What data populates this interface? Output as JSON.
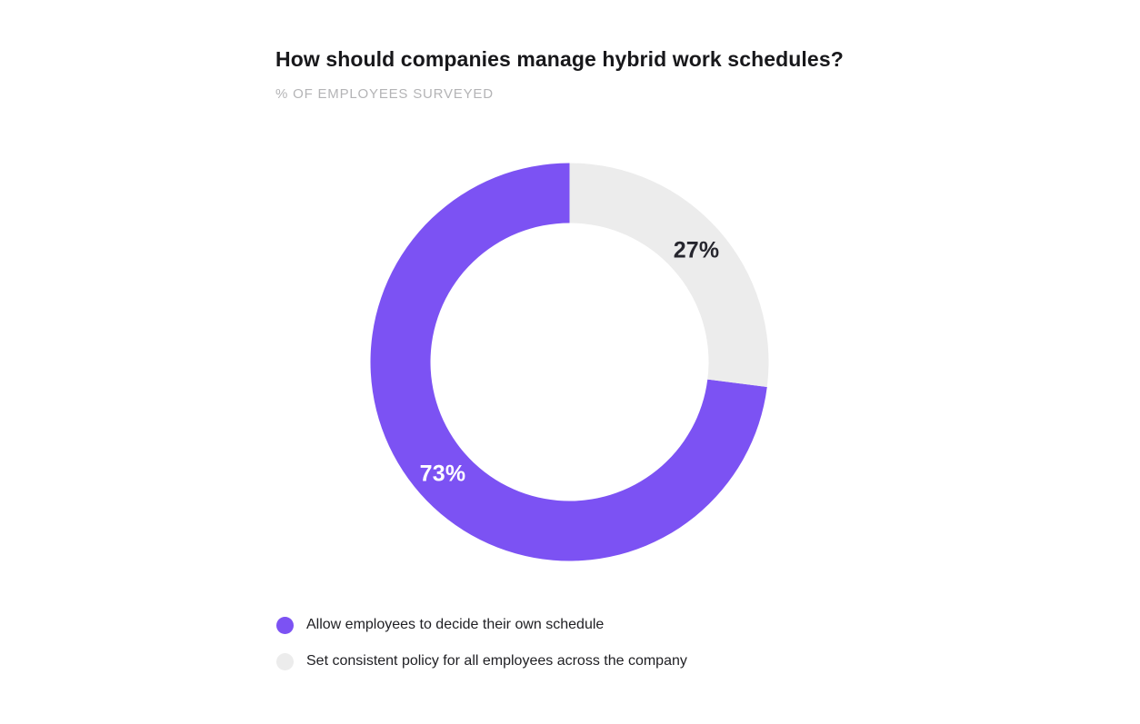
{
  "header": {
    "title": "How should companies manage hybrid work schedules?",
    "subtitle": "% OF EMPLOYEES SURVEYED"
  },
  "chart_data": {
    "type": "pie",
    "variant": "donut",
    "title": "How should companies manage hybrid work schedules?",
    "subtitle": "% OF EMPLOYEES SURVEYED",
    "unit": "%",
    "rotation_deg": 97.2,
    "inner_radius_ratio": 0.7,
    "legend_position": "bottom-left",
    "segments": [
      {
        "label": "Allow employees to decide their own schedule",
        "value": 73,
        "value_label": "73%",
        "color": "#7c52f3",
        "value_label_color": "#ffffff"
      },
      {
        "label": "Set consistent policy for all employees across the company",
        "value": 27,
        "value_label": "27%",
        "color": "#ececec",
        "value_label_color": "#26262e"
      }
    ]
  },
  "colors": {
    "background": "#ffffff",
    "title_text": "#18181b",
    "subtitle_text": "#b4b4b6",
    "legend_text": "#1f1f23",
    "accent_purple": "#7c52f3",
    "neutral_gray": "#ececec"
  }
}
